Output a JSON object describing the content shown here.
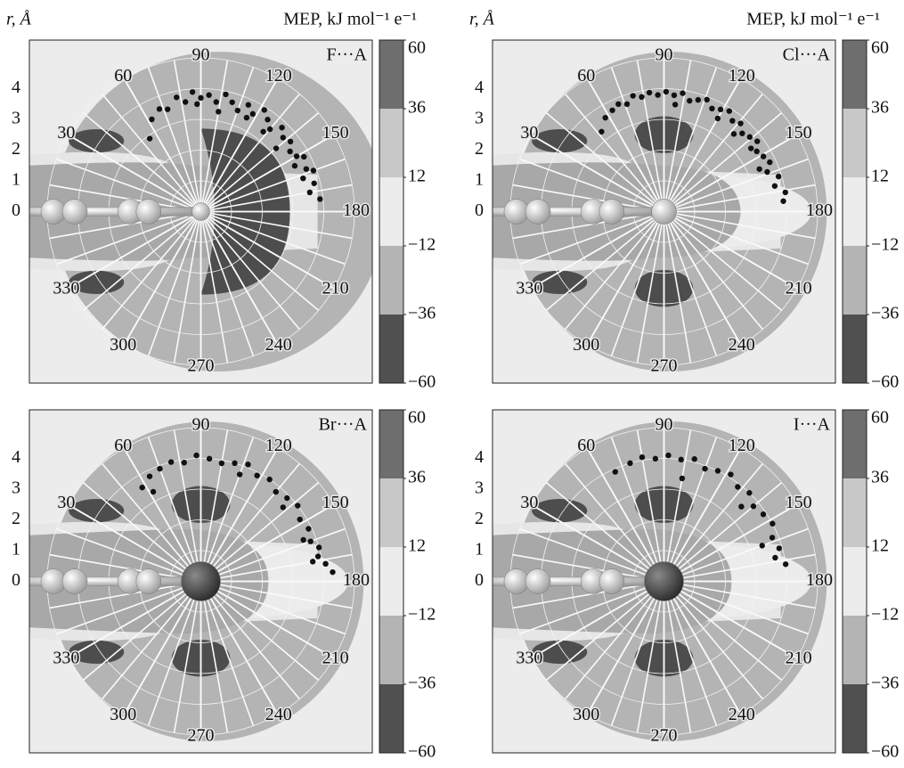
{
  "chart_data": [
    {
      "type": "polar-scatter",
      "title": "F···A",
      "r_label": "r, Å",
      "colorbar_title": "MEP, kJ mol⁻¹  e⁻¹",
      "rlim": [
        0,
        5
      ],
      "rticks": [
        0,
        1,
        2,
        3,
        4
      ],
      "thetaticks": [
        30,
        60,
        90,
        120,
        150,
        180,
        210,
        240,
        270,
        300,
        330
      ],
      "theta": [
        55,
        62,
        68,
        72,
        78,
        82,
        86,
        90,
        94,
        98,
        102,
        106,
        110,
        114,
        118,
        122,
        126,
        130,
        134,
        138,
        142,
        146,
        150,
        154,
        158,
        162,
        166,
        170,
        174,
        140,
        128,
        100,
        88,
        116,
        152,
        160
      ],
      "r": [
        2.9,
        3.4,
        3.6,
        3.5,
        3.8,
        3.6,
        3.9,
        3.7,
        3.8,
        3.6,
        3.9,
        3.7,
        3.5,
        3.8,
        3.6,
        3.9,
        3.7,
        3.5,
        3.8,
        3.6,
        3.7,
        3.5,
        3.6,
        3.4,
        3.7,
        3.5,
        3.8,
        3.6,
        3.9,
        3.2,
        3.3,
        3.3,
        3.5,
        3.4,
        3.8,
        3.9
      ],
      "color": "#111111",
      "colorbar": {
        "ticks": [
          60,
          36,
          12,
          {
            "value": -12,
            "label": "−12"
          },
          {
            "value": -36,
            "label": "−36"
          },
          {
            "value": -60,
            "label": "−60"
          }
        ],
        "colors": [
          "#6e6e6e",
          "#c8c8c8",
          "#ececec",
          "#b4b4b4",
          "#505050"
        ]
      }
    },
    {
      "type": "polar-scatter",
      "title": "Cl···A",
      "r_label": "r, Å",
      "colorbar_title": "MEP, kJ mol⁻¹  e⁻¹",
      "rlim": [
        0,
        5
      ],
      "rticks": [
        0,
        1,
        2,
        3,
        4
      ],
      "thetaticks": [
        30,
        60,
        90,
        120,
        150,
        180,
        210,
        240,
        270,
        300,
        330
      ],
      "theta": [
        52,
        58,
        63,
        67,
        71,
        75,
        79,
        83,
        87,
        91,
        95,
        99,
        103,
        107,
        111,
        115,
        119,
        123,
        127,
        131,
        135,
        139,
        143,
        147,
        151,
        155,
        159,
        163,
        167,
        171,
        175,
        120,
        132,
        144,
        156,
        96
      ],
      "r": [
        3.3,
        3.6,
        3.7,
        3.8,
        3.7,
        3.9,
        3.8,
        3.9,
        3.8,
        3.9,
        3.8,
        3.9,
        3.7,
        3.8,
        3.9,
        3.7,
        3.8,
        3.9,
        3.7,
        3.8,
        3.6,
        3.7,
        3.8,
        3.6,
        3.7,
        3.8,
        3.6,
        3.9,
        3.7,
        4.0,
        3.9,
        3.5,
        3.4,
        3.5,
        3.4,
        3.5
      ],
      "color": "#111111",
      "colorbar": {
        "ticks": [
          60,
          36,
          12,
          {
            "value": -12,
            "label": "−12"
          },
          {
            "value": -36,
            "label": "−36"
          },
          {
            "value": -60,
            "label": "−60"
          }
        ],
        "colors": [
          "#6e6e6e",
          "#c8c8c8",
          "#ececec",
          "#b4b4b4",
          "#505050"
        ]
      }
    },
    {
      "type": "polar-scatter",
      "title": "Br···A",
      "rlim": [
        0,
        5
      ],
      "rticks": [
        0,
        1,
        2,
        3,
        4
      ],
      "thetaticks": [
        30,
        60,
        90,
        120,
        150,
        180,
        210,
        240,
        270,
        300,
        330
      ],
      "theta": [
        58,
        64,
        70,
        76,
        82,
        88,
        94,
        100,
        106,
        112,
        118,
        124,
        130,
        136,
        142,
        148,
        154,
        160,
        164,
        168,
        172,
        176,
        62,
        110,
        138,
        158,
        170
      ],
      "r": [
        3.6,
        3.8,
        3.9,
        4.0,
        3.9,
        4.1,
        4.0,
        3.9,
        4.0,
        4.1,
        3.9,
        4.0,
        3.8,
        3.9,
        4.0,
        3.8,
        3.9,
        3.8,
        4.0,
        3.9,
        4.1,
        4.3,
        3.3,
        3.7,
        3.6,
        3.6,
        3.7
      ],
      "color": "#111111",
      "colorbar": {
        "ticks": [
          60,
          36,
          12,
          {
            "value": -12,
            "label": "−12"
          },
          {
            "value": -36,
            "label": "−36"
          },
          {
            "value": -60,
            "label": "−60"
          }
        ],
        "colors": [
          "#6e6e6e",
          "#c8c8c8",
          "#ececec",
          "#b4b4b4",
          "#505050"
        ]
      }
    },
    {
      "type": "polar-scatter",
      "title": "I···A",
      "rlim": [
        0,
        5
      ],
      "rticks": [
        0,
        1,
        2,
        3,
        4
      ],
      "thetaticks": [
        30,
        60,
        90,
        120,
        150,
        180,
        210,
        240,
        270,
        300,
        330
      ],
      "theta": [
        66,
        74,
        80,
        86,
        92,
        98,
        104,
        110,
        116,
        122,
        128,
        134,
        140,
        146,
        152,
        158,
        164,
        168,
        172,
        100,
        136,
        160
      ],
      "r": [
        3.9,
        4.0,
        4.1,
        4.0,
        4.1,
        4.0,
        4.1,
        3.9,
        4.0,
        4.1,
        3.9,
        4.0,
        3.8,
        3.9,
        4.0,
        3.8,
        3.9,
        3.7,
        4.0,
        3.4,
        3.5,
        3.4
      ],
      "color": "#111111",
      "colorbar": {
        "ticks": [
          60,
          36,
          12,
          {
            "value": -12,
            "label": "−12"
          },
          {
            "value": -36,
            "label": "−36"
          },
          {
            "value": -60,
            "label": "−60"
          }
        ],
        "colors": [
          "#6e6e6e",
          "#c8c8c8",
          "#ececec",
          "#b4b4b4",
          "#505050"
        ]
      }
    }
  ]
}
